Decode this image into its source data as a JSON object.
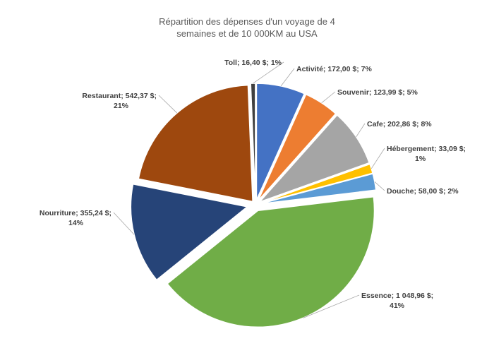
{
  "chart_data": {
    "type": "pie",
    "title": "Répartition des dépenses d'un voyage de 4 semaines et de 10 000KM au USA",
    "title_lines": [
      "Répartition des dépenses d'un voyage de 4",
      "semaines et de 10 000KM au USA"
    ],
    "slices": [
      {
        "name": "Activité",
        "value": 172.0,
        "value_label": "172,00 $",
        "percent": 7,
        "color": "#4472C4",
        "label_lines": [
          "Activité; 172,00 $; 7%"
        ]
      },
      {
        "name": "Souvenir",
        "value": 123.99,
        "value_label": "123,99 $",
        "percent": 5,
        "color": "#ED7D31",
        "label_lines": [
          "Souvenir; 123,99 $; 5%"
        ]
      },
      {
        "name": "Cafe",
        "value": 202.86,
        "value_label": "202,86 $",
        "percent": 8,
        "color": "#A5A5A5",
        "label_lines": [
          "Cafe; 202,86 $; 8%"
        ]
      },
      {
        "name": "Hébergement",
        "value": 33.09,
        "value_label": "33,09 $",
        "percent": 1,
        "color": "#FFC000",
        "label_lines": [
          "Hébergement; 33,09 $;",
          "1%"
        ]
      },
      {
        "name": "Douche",
        "value": 58.0,
        "value_label": "58,00 $",
        "percent": 2,
        "color": "#5B9BD5",
        "label_lines": [
          "Douche; 58,00 $; 2%"
        ]
      },
      {
        "name": "Essence",
        "value": 1048.96,
        "value_label": "1 048,96 $",
        "percent": 41,
        "color": "#70AD47",
        "label_lines": [
          "Essence; 1 048,96 $;",
          "41%"
        ]
      },
      {
        "name": "Nourriture",
        "value": 355.24,
        "value_label": "355,24 $",
        "percent": 14,
        "color": "#264478",
        "label_lines": [
          "Nourriture; 355,24 $;",
          "14%"
        ]
      },
      {
        "name": "Restaurant",
        "value": 542.37,
        "value_label": "542,37 $",
        "percent": 21,
        "color": "#9E480E",
        "label_lines": [
          "Restaurant; 542,37 $;",
          "21%"
        ]
      },
      {
        "name": "Toll",
        "value": 16.4,
        "value_label": "16,40 $",
        "percent": 1,
        "color": "#404040",
        "label_lines": [
          "Toll; 16,40 $; 1%"
        ]
      }
    ],
    "legend": "none",
    "data_labels": "outside-with-leader-lines"
  }
}
